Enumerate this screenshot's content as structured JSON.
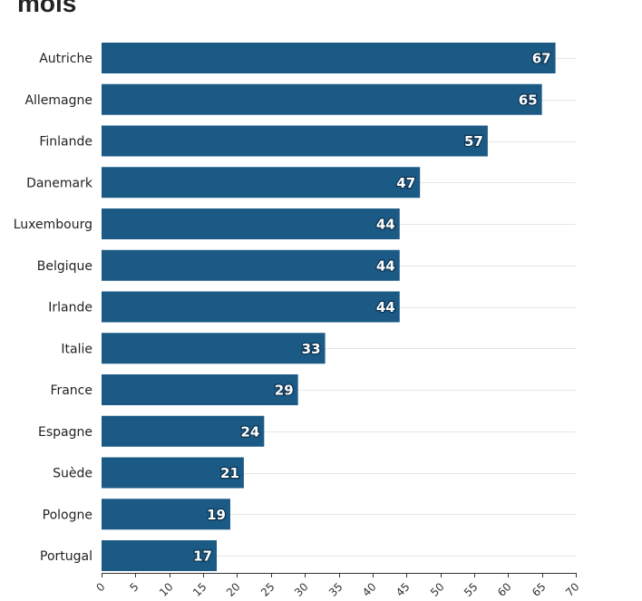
{
  "title": "mois",
  "chart_data": {
    "type": "bar",
    "orientation": "horizontal",
    "categories": [
      "Autriche",
      "Allemagne",
      "Finlande",
      "Danemark",
      "Luxembourg",
      "Belgique",
      "Irlande",
      "Italie",
      "France",
      "Espagne",
      "Suède",
      "Pologne",
      "Portugal"
    ],
    "values": [
      67,
      65,
      57,
      47,
      44,
      44,
      44,
      33,
      29,
      24,
      21,
      19,
      17
    ],
    "xlim": [
      0,
      70
    ],
    "xticks": [
      0,
      5,
      10,
      15,
      20,
      25,
      30,
      35,
      40,
      45,
      50,
      55,
      60,
      65,
      70
    ],
    "grid": true,
    "bar_color": "#1b5a85"
  }
}
